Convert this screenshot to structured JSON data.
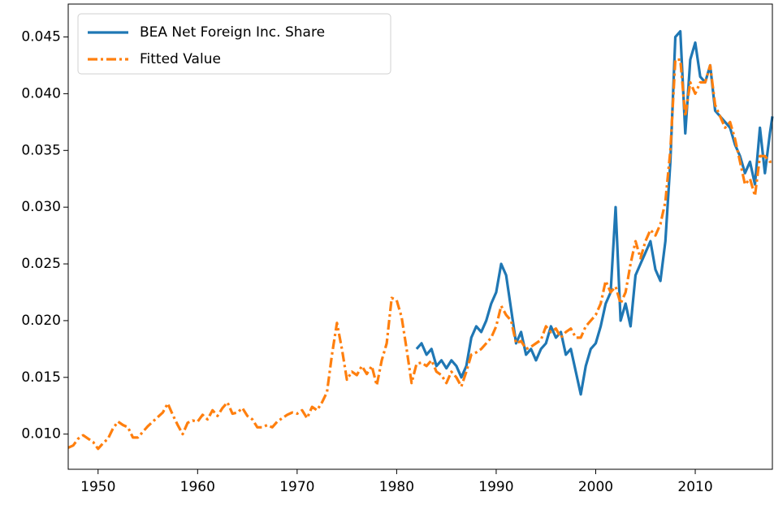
{
  "chart_data": {
    "type": "line",
    "x": [
      1947,
      1947.5,
      1948,
      1948.5,
      1949,
      1949.5,
      1950,
      1950.5,
      1951,
      1951.5,
      1952,
      1952.5,
      1953,
      1953.5,
      1954,
      1954.5,
      1955,
      1955.5,
      1956,
      1956.5,
      1957,
      1957.5,
      1958,
      1958.5,
      1959,
      1959.5,
      1960,
      1960.5,
      1961,
      1961.5,
      1962,
      1962.5,
      1963,
      1963.5,
      1964,
      1964.5,
      1965,
      1965.5,
      1966,
      1966.5,
      1967,
      1967.5,
      1968,
      1968.5,
      1969,
      1969.5,
      1970,
      1970.5,
      1971,
      1971.5,
      1972,
      1972.5,
      1973,
      1973.5,
      1974,
      1974.5,
      1975,
      1975.5,
      1976,
      1976.5,
      1977,
      1977.5,
      1978,
      1978.5,
      1979,
      1979.5,
      1980,
      1980.5,
      1981,
      1981.5,
      1982,
      1982.5,
      1983,
      1983.5,
      1984,
      1984.5,
      1985,
      1985.5,
      1986,
      1986.5,
      1987,
      1987.5,
      1988,
      1988.5,
      1989,
      1989.5,
      1990,
      1990.5,
      1991,
      1991.5,
      1992,
      1992.5,
      1993,
      1993.5,
      1994,
      1994.5,
      1995,
      1995.5,
      1996,
      1996.5,
      1997,
      1997.5,
      1998,
      1998.5,
      1999,
      1999.5,
      2000,
      2000.5,
      2001,
      2001.5,
      2002,
      2002.5,
      2003,
      2003.5,
      2004,
      2004.5,
      2005,
      2005.5,
      2006,
      2006.5,
      2007,
      2007.5,
      2008,
      2008.5,
      2009,
      2009.5,
      2010,
      2010.5,
      2011,
      2011.5,
      2012,
      2012.5,
      2013,
      2013.5,
      2014,
      2014.5,
      2015,
      2015.5,
      2016,
      2016.5,
      2017,
      2017.5,
      2017.75
    ],
    "series": [
      {
        "name": "BEA Net Foreign Inc. Share",
        "color": "#1f77b4",
        "linestyle": "solid",
        "values": [
          null,
          null,
          null,
          null,
          null,
          null,
          null,
          null,
          null,
          null,
          null,
          null,
          null,
          null,
          null,
          null,
          null,
          null,
          null,
          null,
          null,
          null,
          null,
          null,
          null,
          null,
          null,
          null,
          null,
          null,
          null,
          null,
          null,
          null,
          null,
          null,
          null,
          null,
          null,
          null,
          null,
          null,
          null,
          null,
          null,
          null,
          null,
          null,
          null,
          null,
          null,
          null,
          null,
          null,
          null,
          null,
          null,
          null,
          null,
          null,
          null,
          null,
          null,
          null,
          null,
          null,
          null,
          null,
          null,
          null,
          0.0175,
          0.018,
          0.017,
          0.0175,
          0.016,
          0.0165,
          0.0158,
          0.0165,
          0.016,
          0.015,
          0.016,
          0.0185,
          0.0195,
          0.019,
          0.02,
          0.0215,
          0.0225,
          0.025,
          0.024,
          0.021,
          0.018,
          0.019,
          0.017,
          0.0175,
          0.0165,
          0.0175,
          0.018,
          0.0195,
          0.0185,
          0.019,
          0.017,
          0.0175,
          0.0155,
          0.0135,
          0.016,
          0.0175,
          0.018,
          0.0195,
          0.0215,
          0.0225,
          0.03,
          0.02,
          0.0215,
          0.0195,
          0.024,
          0.025,
          0.026,
          0.027,
          0.0245,
          0.0235,
          0.027,
          0.034,
          0.045,
          0.0455,
          0.0365,
          0.043,
          0.0445,
          0.0415,
          0.041,
          0.0425,
          0.0385,
          0.038,
          0.0375,
          0.037,
          0.0355,
          0.0345,
          0.033,
          0.034,
          0.032,
          0.037,
          0.033,
          0.0365,
          0.038
        ]
      },
      {
        "name": "Fitted Value",
        "color": "#ff7f0e",
        "linestyle": "dashdot",
        "values": [
          0.0088,
          0.009,
          0.0096,
          0.0099,
          0.0096,
          0.0093,
          0.0087,
          0.0092,
          0.0096,
          0.0105,
          0.0111,
          0.0108,
          0.0106,
          0.0097,
          0.0097,
          0.0102,
          0.0107,
          0.0111,
          0.0115,
          0.0119,
          0.0127,
          0.0117,
          0.0108,
          0.01,
          0.011,
          0.0112,
          0.0111,
          0.0117,
          0.0113,
          0.0121,
          0.0116,
          0.0123,
          0.0128,
          0.0118,
          0.0119,
          0.0123,
          0.0116,
          0.0113,
          0.0106,
          0.0106,
          0.0108,
          0.0106,
          0.0111,
          0.0114,
          0.0117,
          0.0119,
          0.0118,
          0.0121,
          0.0114,
          0.0124,
          0.0121,
          0.0128,
          0.0137,
          0.017,
          0.0198,
          0.0175,
          0.0148,
          0.0155,
          0.0152,
          0.016,
          0.0153,
          0.016,
          0.0143,
          0.0165,
          0.018,
          0.022,
          0.0218,
          0.0203,
          0.0175,
          0.0145,
          0.0162,
          0.0163,
          0.016,
          0.0165,
          0.0155,
          0.0152,
          0.0145,
          0.0155,
          0.015,
          0.0142,
          0.0155,
          0.017,
          0.0172,
          0.0175,
          0.018,
          0.0185,
          0.0195,
          0.0213,
          0.0205,
          0.02,
          0.018,
          0.0182,
          0.0175,
          0.0177,
          0.018,
          0.0183,
          0.0195,
          0.019,
          0.0193,
          0.0185,
          0.019,
          0.0193,
          0.0185,
          0.0185,
          0.0195,
          0.02,
          0.0205,
          0.0215,
          0.0235,
          0.0225,
          0.023,
          0.0215,
          0.0225,
          0.025,
          0.027,
          0.0255,
          0.027,
          0.028,
          0.0275,
          0.0285,
          0.0305,
          0.035,
          0.043,
          0.043,
          0.038,
          0.041,
          0.04,
          0.041,
          0.041,
          0.0425,
          0.039,
          0.038,
          0.037,
          0.0375,
          0.036,
          0.034,
          0.032,
          0.0325,
          0.031,
          0.0345,
          0.0345,
          0.034,
          0.034
        ]
      }
    ],
    "xlim": [
      1947,
      2017.75
    ],
    "xticks": [
      1950,
      1960,
      1970,
      1980,
      1990,
      2000,
      2010
    ],
    "ylim": [
      0.0069,
      0.0479
    ],
    "yticks": [
      {
        "value": 0.01,
        "label": "0.010"
      },
      0.015,
      {
        "value": 0.02,
        "label": "0.020"
      },
      0.025,
      {
        "value": 0.03,
        "label": "0.030"
      },
      0.035,
      {
        "value": 0.04,
        "label": "0.040"
      },
      0.045
    ],
    "grid": false,
    "legend": "upper left"
  }
}
